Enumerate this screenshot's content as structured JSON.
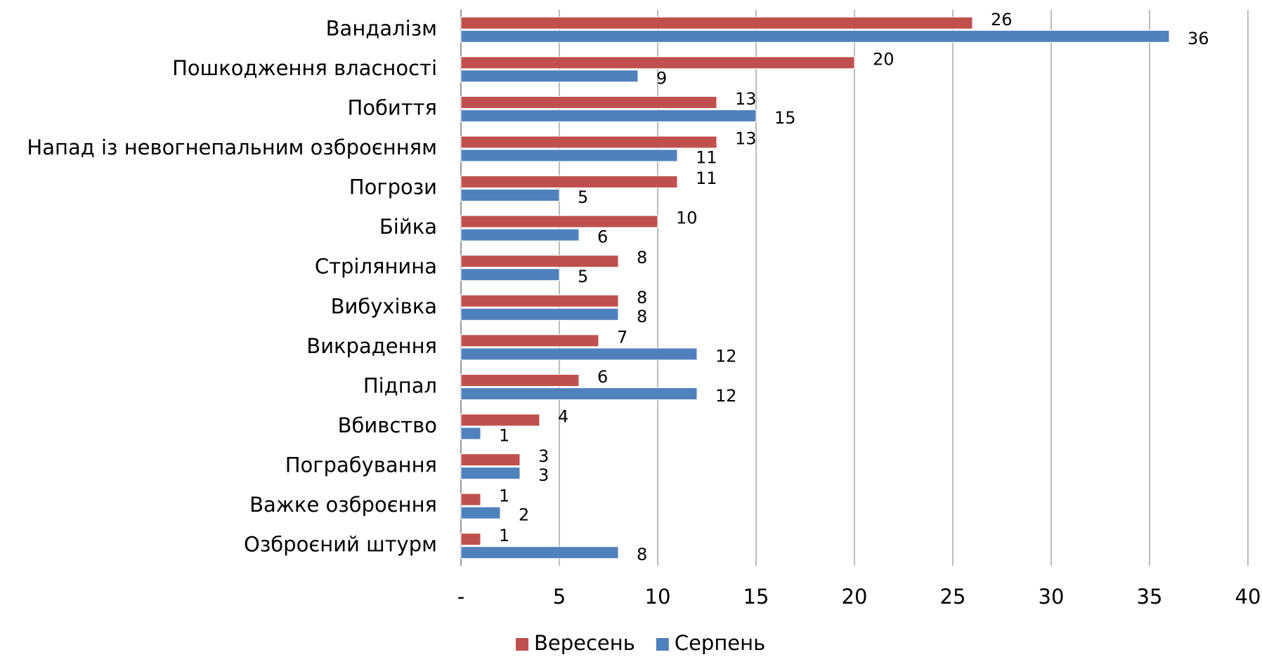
{
  "chart_data": {
    "type": "bar",
    "orientation": "horizontal",
    "categories": [
      "Вандалізм",
      "Пошкодження власності",
      "Побиття",
      "Напад із невогнепальним озброєнням",
      "Погрози",
      "Бійка",
      "Стрілянина",
      "Вибухівка",
      "Викрадення",
      "Підпал",
      "Вбивство",
      "Пограбування",
      "Важке озброєння",
      "Озброєний штурм"
    ],
    "series": [
      {
        "name": "Вересень",
        "color": "#c0504d",
        "values": [
          26,
          20,
          13,
          13,
          11,
          10,
          8,
          8,
          7,
          6,
          4,
          3,
          1,
          1
        ]
      },
      {
        "name": "Серпень",
        "color": "#4f81bd",
        "values": [
          36,
          9,
          15,
          11,
          5,
          6,
          5,
          8,
          12,
          12,
          1,
          3,
          2,
          8
        ]
      }
    ],
    "xlim": [
      0,
      40
    ],
    "xticks": [
      {
        "value": 0,
        "label": "-"
      },
      5,
      10,
      15,
      20,
      25,
      30,
      35,
      40
    ],
    "grid": true,
    "legend": "bottom"
  }
}
